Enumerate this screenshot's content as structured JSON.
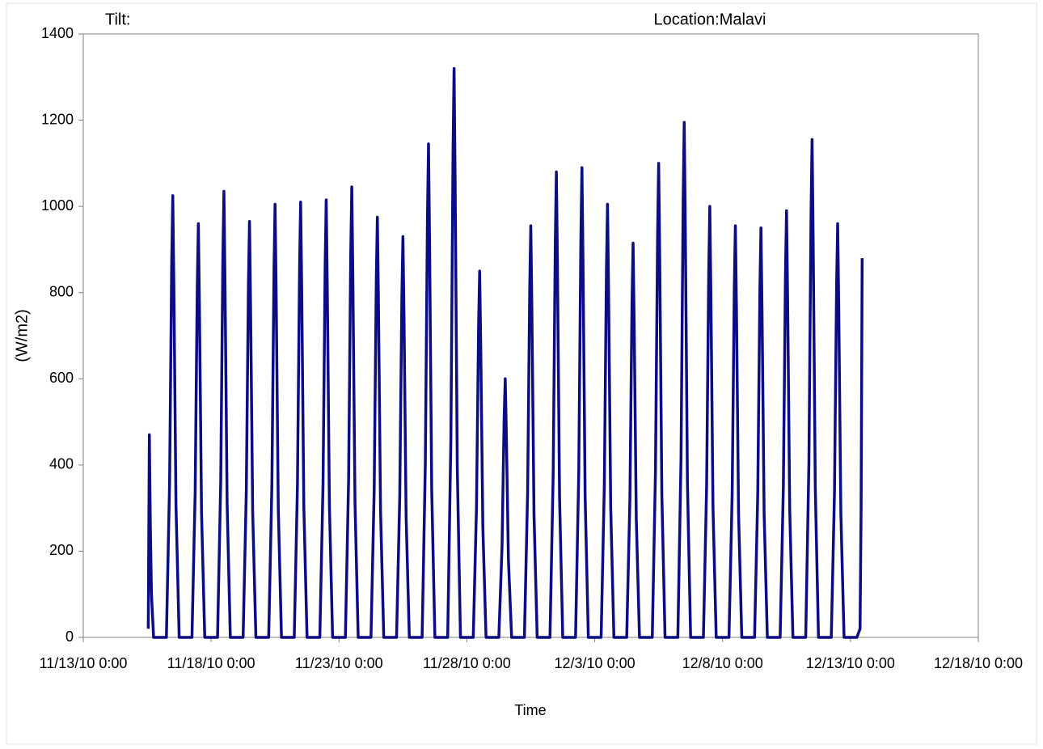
{
  "chart_data": {
    "type": "line",
    "title": "Tilt:",
    "subtitle": "Location:Malavi",
    "x_label": "Time",
    "y_label": "(W/m2)",
    "color": "#0c0c84",
    "x": [
      "11/15/10 13:00",
      "11/15/10 14:00",
      "11/15/10 15:00",
      "11/15/10 16:00",
      "11/15/10 18:00",
      "11/16/10 6:00",
      "11/16/10 9:00",
      "11/16/10 11:00",
      "11/16/10 12:00",
      "11/16/10 13:00",
      "11/16/10 15:00",
      "11/16/10 18:00",
      "11/17/10 6:00",
      "11/17/10 9:00",
      "11/17/10 11:00",
      "11/17/10 12:00",
      "11/17/10 13:00",
      "11/17/10 15:00",
      "11/17/10 18:00",
      "11/18/10 6:00",
      "11/18/10 9:00",
      "11/18/10 11:00",
      "11/18/10 12:00",
      "11/18/10 13:00",
      "11/18/10 15:00",
      "11/18/10 18:00",
      "11/19/10 6:00",
      "11/19/10 9:00",
      "11/19/10 11:00",
      "11/19/10 12:00",
      "11/19/10 13:00",
      "11/19/10 15:00",
      "11/19/10 18:00",
      "11/20/10 6:00",
      "11/20/10 9:00",
      "11/20/10 11:00",
      "11/20/10 12:00",
      "11/20/10 13:00",
      "11/20/10 15:00",
      "11/20/10 18:00",
      "11/21/10 6:00",
      "11/21/10 9:00",
      "11/21/10 11:00",
      "11/21/10 12:00",
      "11/21/10 13:00",
      "11/21/10 15:00",
      "11/21/10 18:00",
      "11/22/10 6:00",
      "11/22/10 9:00",
      "11/22/10 11:00",
      "11/22/10 12:00",
      "11/22/10 13:00",
      "11/22/10 15:00",
      "11/22/10 18:00",
      "11/23/10 6:00",
      "11/23/10 9:00",
      "11/23/10 11:00",
      "11/23/10 12:00",
      "11/23/10 13:00",
      "11/23/10 15:00",
      "11/23/10 18:00",
      "11/24/10 6:00",
      "11/24/10 9:00",
      "11/24/10 11:00",
      "11/24/10 12:00",
      "11/24/10 13:00",
      "11/24/10 15:00",
      "11/24/10 18:00",
      "11/25/10 6:00",
      "11/25/10 9:00",
      "11/25/10 11:00",
      "11/25/10 12:00",
      "11/25/10 13:00",
      "11/25/10 15:00",
      "11/25/10 18:00",
      "11/26/10 6:00",
      "11/26/10 9:00",
      "11/26/10 11:00",
      "11/26/10 12:00",
      "11/26/10 13:00",
      "11/26/10 15:00",
      "11/26/10 18:00",
      "11/27/10 6:00",
      "11/27/10 9:00",
      "11/27/10 11:00",
      "11/27/10 12:00",
      "11/27/10 13:00",
      "11/27/10 15:00",
      "11/27/10 18:00",
      "11/28/10 6:00",
      "11/28/10 9:00",
      "11/28/10 11:00",
      "11/28/10 12:00",
      "11/28/10 13:00",
      "11/28/10 15:00",
      "11/28/10 18:00",
      "11/29/10 6:00",
      "11/29/10 9:00",
      "11/29/10 11:00",
      "11/29/10 12:00",
      "11/29/10 13:00",
      "11/29/10 15:00",
      "11/29/10 18:00",
      "11/30/10 6:00",
      "11/30/10 9:00",
      "11/30/10 11:00",
      "11/30/10 12:00",
      "11/30/10 13:00",
      "11/30/10 15:00",
      "11/30/10 18:00",
      "12/1/10 6:00",
      "12/1/10 9:00",
      "12/1/10 11:00",
      "12/1/10 12:00",
      "12/1/10 13:00",
      "12/1/10 15:00",
      "12/1/10 18:00",
      "12/2/10 6:00",
      "12/2/10 9:00",
      "12/2/10 11:00",
      "12/2/10 12:00",
      "12/2/10 13:00",
      "12/2/10 15:00",
      "12/2/10 18:00",
      "12/3/10 6:00",
      "12/3/10 9:00",
      "12/3/10 11:00",
      "12/3/10 12:00",
      "12/3/10 13:00",
      "12/3/10 15:00",
      "12/3/10 18:00",
      "12/4/10 6:00",
      "12/4/10 9:00",
      "12/4/10 11:00",
      "12/4/10 12:00",
      "12/4/10 13:00",
      "12/4/10 15:00",
      "12/4/10 18:00",
      "12/5/10 6:00",
      "12/5/10 9:00",
      "12/5/10 11:00",
      "12/5/10 12:00",
      "12/5/10 13:00",
      "12/5/10 15:00",
      "12/5/10 18:00",
      "12/6/10 6:00",
      "12/6/10 9:00",
      "12/6/10 11:00",
      "12/6/10 12:00",
      "12/6/10 13:00",
      "12/6/10 15:00",
      "12/6/10 18:00",
      "12/7/10 6:00",
      "12/7/10 9:00",
      "12/7/10 11:00",
      "12/7/10 12:00",
      "12/7/10 13:00",
      "12/7/10 15:00",
      "12/7/10 18:00",
      "12/8/10 6:00",
      "12/8/10 9:00",
      "12/8/10 11:00",
      "12/8/10 12:00",
      "12/8/10 13:00",
      "12/8/10 15:00",
      "12/8/10 18:00",
      "12/9/10 6:00",
      "12/9/10 9:00",
      "12/9/10 11:00",
      "12/9/10 12:00",
      "12/9/10 13:00",
      "12/9/10 15:00",
      "12/9/10 18:00",
      "12/10/10 6:00",
      "12/10/10 9:00",
      "12/10/10 11:00",
      "12/10/10 12:00",
      "12/10/10 13:00",
      "12/10/10 15:00",
      "12/10/10 18:00",
      "12/11/10 6:00",
      "12/11/10 9:00",
      "12/11/10 11:00",
      "12/11/10 12:00",
      "12/11/10 13:00",
      "12/11/10 15:00",
      "12/11/10 18:00",
      "12/12/10 6:00",
      "12/12/10 9:00",
      "12/12/10 11:00",
      "12/12/10 12:00",
      "12/12/10 13:00",
      "12/12/10 15:00",
      "12/12/10 18:00",
      "12/13/10 6:00",
      "12/13/10 9:00",
      "12/13/10 10:00",
      "12/13/10 11:00"
    ],
    "values": [
      20,
      470,
      250,
      100,
      0,
      0,
      359,
      871,
      1025,
      820,
      308,
      0,
      0,
      336,
      816,
      960,
      768,
      288,
      0,
      0,
      362,
      880,
      1035,
      828,
      311,
      0,
      0,
      338,
      820,
      965,
      772,
      290,
      0,
      0,
      352,
      854,
      1005,
      804,
      302,
      0,
      0,
      354,
      859,
      1010,
      808,
      303,
      0,
      0,
      355,
      863,
      1015,
      812,
      305,
      0,
      0,
      366,
      888,
      1045,
      836,
      314,
      0,
      0,
      341,
      829,
      975,
      780,
      293,
      0,
      0,
      326,
      791,
      930,
      744,
      279,
      0,
      0,
      401,
      973,
      1145,
      916,
      344,
      0,
      0,
      462,
      1122,
      1320,
      1056,
      396,
      0,
      0,
      298,
      723,
      850,
      680,
      255,
      0,
      0,
      210,
      510,
      600,
      480,
      180,
      0,
      0,
      334,
      812,
      955,
      764,
      287,
      0,
      0,
      378,
      918,
      1080,
      864,
      324,
      0,
      0,
      382,
      927,
      1090,
      872,
      327,
      0,
      0,
      352,
      854,
      1005,
      804,
      302,
      0,
      0,
      320,
      778,
      915,
      732,
      275,
      0,
      0,
      385,
      935,
      1100,
      880,
      330,
      0,
      0,
      418,
      1016,
      1195,
      956,
      359,
      0,
      0,
      350,
      850,
      1000,
      800,
      300,
      0,
      0,
      334,
      812,
      955,
      764,
      287,
      0,
      0,
      333,
      808,
      950,
      760,
      285,
      0,
      0,
      347,
      842,
      990,
      792,
      297,
      0,
      0,
      404,
      982,
      1155,
      924,
      347,
      0,
      0,
      336,
      816,
      960,
      768,
      288,
      0,
      0,
      20,
      300,
      880
    ],
    "xlim": [
      "11/13/10 0:00",
      "12/18/10 0:00"
    ],
    "xticks": [
      "11/13/10 0:00",
      "11/18/10 0:00",
      "11/23/10 0:00",
      "11/28/10 0:00",
      "12/3/10 0:00",
      "12/8/10 0:00",
      "12/13/10 0:00",
      "12/18/10 0:00"
    ],
    "ylim": [
      0,
      1400
    ],
    "yticks": [
      0,
      200,
      400,
      600,
      800,
      1000,
      1200,
      1400
    ]
  }
}
